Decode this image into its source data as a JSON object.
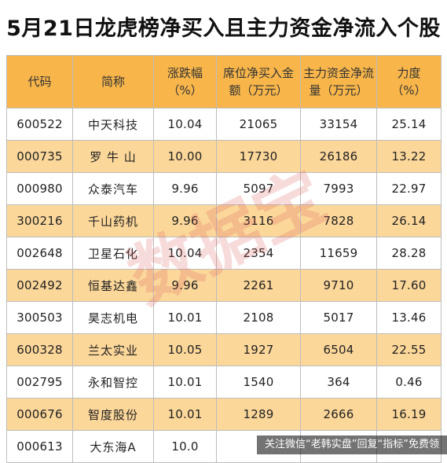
{
  "title": "5月21日龙虎榜净买入且主力资金净流入个股",
  "watermark": "数据宝",
  "footer": "关注微信“老韩实盘”回复“指标”免费领",
  "table": {
    "headers": [
      {
        "line1": "代码",
        "line2": ""
      },
      {
        "line1": "简称",
        "line2": ""
      },
      {
        "line1": "涨跌幅",
        "line2": "（%）"
      },
      {
        "line1": "席位净买入金",
        "line2": "额（万元）"
      },
      {
        "line1": "主力资金净流",
        "line2": "量（万元）"
      },
      {
        "line1": "力度",
        "line2": "（%）"
      }
    ],
    "rows": [
      {
        "code": "600522",
        "name": "中天科技",
        "change": "10.04",
        "net_buy": "21065",
        "main_flow": "33154",
        "strength": "25.14"
      },
      {
        "code": "000735",
        "name": "罗 牛 山",
        "change": "10.00",
        "net_buy": "17730",
        "main_flow": "26186",
        "strength": "13.22"
      },
      {
        "code": "000980",
        "name": "众泰汽车",
        "change": "9.96",
        "net_buy": "5097",
        "main_flow": "7993",
        "strength": "22.97"
      },
      {
        "code": "300216",
        "name": "千山药机",
        "change": "9.96",
        "net_buy": "3116",
        "main_flow": "7828",
        "strength": "26.14"
      },
      {
        "code": "002648",
        "name": "卫星石化",
        "change": "10.04",
        "net_buy": "2354",
        "main_flow": "11659",
        "strength": "28.28"
      },
      {
        "code": "002492",
        "name": "恒基达鑫",
        "change": "9.96",
        "net_buy": "2261",
        "main_flow": "9710",
        "strength": "17.60"
      },
      {
        "code": "300503",
        "name": "昊志机电",
        "change": "10.01",
        "net_buy": "2108",
        "main_flow": "5017",
        "strength": "13.46"
      },
      {
        "code": "600328",
        "name": "兰太实业",
        "change": "10.05",
        "net_buy": "1927",
        "main_flow": "6504",
        "strength": "22.55"
      },
      {
        "code": "002795",
        "name": "永和智控",
        "change": "10.01",
        "net_buy": "1540",
        "main_flow": "364",
        "strength": "0.46"
      },
      {
        "code": "000676",
        "name": "智度股份",
        "change": "10.01",
        "net_buy": "1289",
        "main_flow": "2666",
        "strength": "16.19"
      },
      {
        "code": "000613",
        "name": "大东海A",
        "change": "10.0",
        "net_buy": "",
        "main_flow": "",
        "strength": ""
      }
    ]
  }
}
